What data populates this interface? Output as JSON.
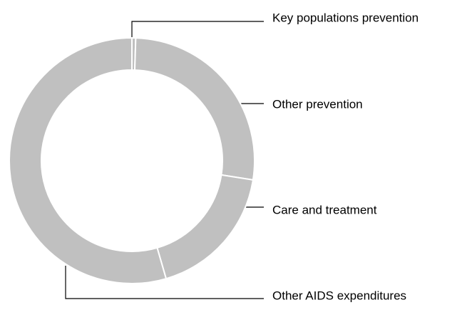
{
  "chart_data": {
    "type": "donut",
    "categories": [
      "Key populations prevention",
      "Other prevention",
      "Care and treatment",
      "Other AIDS expenditures"
    ],
    "values": [
      0.5,
      27,
      18,
      54.5
    ],
    "color": "#c0c0c0"
  }
}
